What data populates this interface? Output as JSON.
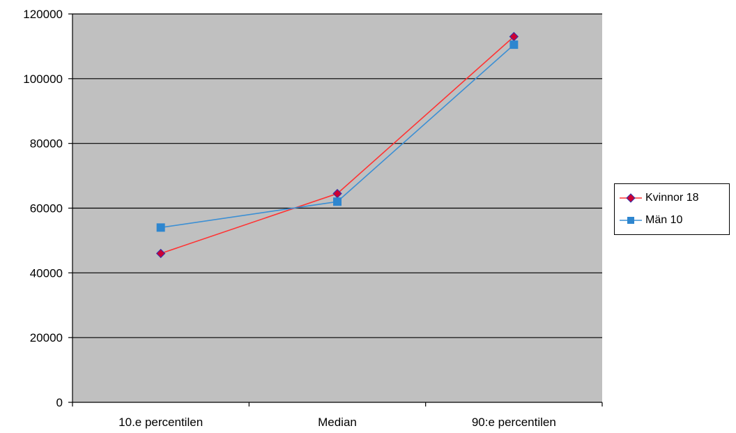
{
  "chart_data": {
    "type": "line",
    "categories": [
      "10.e percentilen",
      "Median",
      "90:e percentilen"
    ],
    "series": [
      {
        "name": "Kvinnor 18",
        "values": [
          46000,
          64500,
          113000
        ],
        "color": "#ff3333",
        "marker_fill": "#cc0033",
        "marker": "diamond"
      },
      {
        "name": "Män 10",
        "values": [
          54000,
          62000,
          110500
        ],
        "color": "#3b8fd4",
        "marker_fill": "#2e86cf",
        "marker": "square"
      }
    ],
    "ylim": [
      0,
      120000
    ],
    "yticks": [
      0,
      20000,
      40000,
      60000,
      80000,
      100000,
      120000
    ],
    "ytick_labels": [
      "0",
      "20000",
      "40000",
      "60000",
      "80000",
      "100000",
      "120000"
    ],
    "grid": true,
    "plot_background": "#c0c0c0",
    "legend_position": "right"
  }
}
